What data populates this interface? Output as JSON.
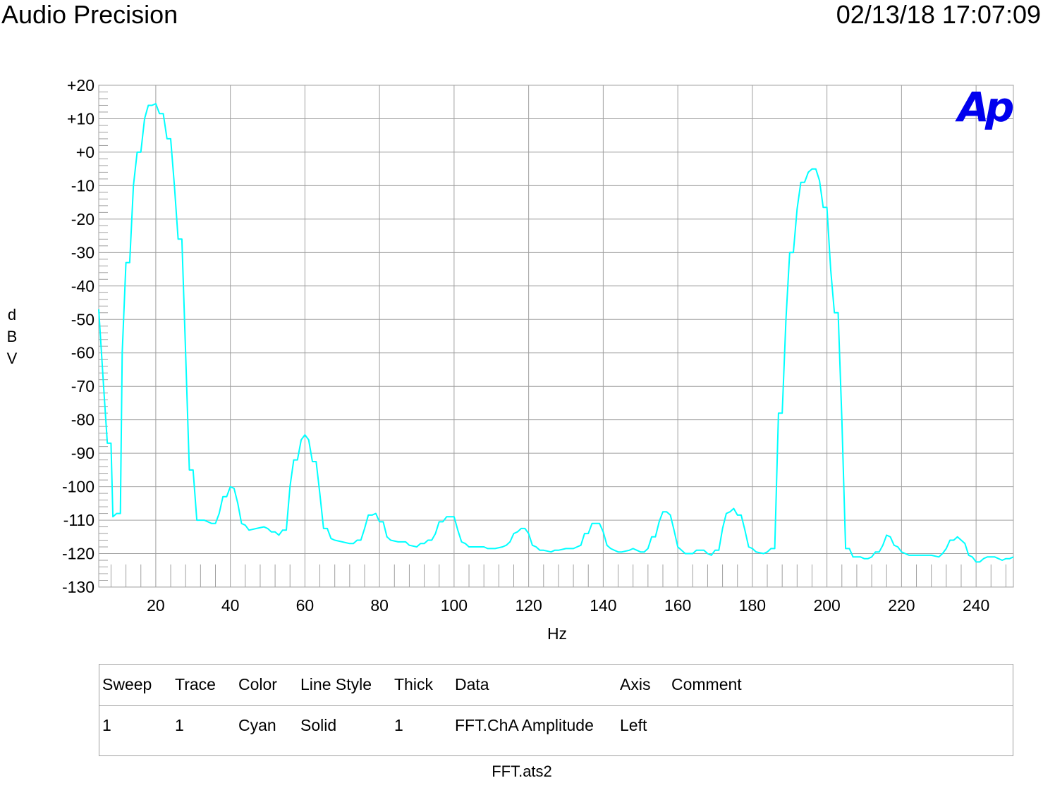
{
  "header": {
    "title": "Audio Precision",
    "timestamp": "02/13/18 17:07:09"
  },
  "logo": {
    "text": "Ap",
    "color": "#0000ee"
  },
  "chart_data": {
    "type": "line",
    "title": "",
    "xlabel": "Hz",
    "ylabel": "dBV",
    "xlim": [
      4.7,
      250
    ],
    "ylim": [
      -130,
      20
    ],
    "x_ticks": [
      20,
      40,
      60,
      80,
      100,
      120,
      140,
      160,
      180,
      200,
      220,
      240
    ],
    "y_ticks": [
      "+20",
      "+10",
      "+0",
      "-10",
      "-20",
      "-30",
      "-40",
      "-50",
      "-60",
      "-70",
      "-80",
      "-90",
      "-100",
      "-110",
      "-120",
      "-130"
    ],
    "grid": true,
    "series": [
      {
        "color": "#00ffff",
        "points": [
          [
            4.7,
            -47
          ],
          [
            6,
            -70
          ],
          [
            7,
            -87
          ],
          [
            8,
            -87
          ],
          [
            8.5,
            -109
          ],
          [
            9.5,
            -108
          ],
          [
            10.5,
            -108
          ],
          [
            11,
            -60
          ],
          [
            12,
            -33
          ],
          [
            13,
            -33
          ],
          [
            14,
            -10
          ],
          [
            15,
            0
          ],
          [
            16,
            0
          ],
          [
            17,
            10
          ],
          [
            18,
            14
          ],
          [
            19,
            14
          ],
          [
            20,
            14.5
          ],
          [
            21,
            11.5
          ],
          [
            22,
            11.5
          ],
          [
            23,
            4
          ],
          [
            24,
            4
          ],
          [
            25,
            -10
          ],
          [
            26,
            -26
          ],
          [
            27,
            -26
          ],
          [
            28,
            -60
          ],
          [
            29,
            -95
          ],
          [
            30,
            -95
          ],
          [
            31,
            -110
          ],
          [
            33,
            -110
          ],
          [
            35,
            -111
          ],
          [
            36,
            -111
          ],
          [
            37,
            -108
          ],
          [
            38,
            -103
          ],
          [
            39,
            -103
          ],
          [
            40,
            -100
          ],
          [
            41,
            -100.5
          ],
          [
            42,
            -105
          ],
          [
            43,
            -111
          ],
          [
            44,
            -111.5
          ],
          [
            45,
            -113
          ],
          [
            47,
            -112.5
          ],
          [
            49,
            -112
          ],
          [
            50,
            -112.5
          ],
          [
            51,
            -113.5
          ],
          [
            52,
            -113.5
          ],
          [
            53,
            -114.5
          ],
          [
            54,
            -113
          ],
          [
            55,
            -113
          ],
          [
            56,
            -100
          ],
          [
            57,
            -92
          ],
          [
            58,
            -92
          ],
          [
            59,
            -86
          ],
          [
            60,
            -84.5
          ],
          [
            61,
            -86
          ],
          [
            62,
            -92.5
          ],
          [
            63,
            -92.5
          ],
          [
            64,
            -102
          ],
          [
            65,
            -112.5
          ],
          [
            66,
            -112.5
          ],
          [
            67,
            -115.5
          ],
          [
            68,
            -116
          ],
          [
            70,
            -116.5
          ],
          [
            72,
            -117
          ],
          [
            73,
            -117
          ],
          [
            74,
            -116
          ],
          [
            75,
            -116
          ],
          [
            76,
            -112.5
          ],
          [
            77,
            -108.5
          ],
          [
            78,
            -108.5
          ],
          [
            79,
            -108
          ],
          [
            80,
            -110.5
          ],
          [
            81,
            -110.5
          ],
          [
            82,
            -115
          ],
          [
            83,
            -116
          ],
          [
            85,
            -116.5
          ],
          [
            87,
            -116.5
          ],
          [
            88,
            -117.5
          ],
          [
            90,
            -118
          ],
          [
            91,
            -117
          ],
          [
            92,
            -117
          ],
          [
            93,
            -116
          ],
          [
            94,
            -116
          ],
          [
            95,
            -114
          ],
          [
            96,
            -110.5
          ],
          [
            97,
            -110.5
          ],
          [
            98,
            -109
          ],
          [
            99,
            -109
          ],
          [
            100,
            -109
          ],
          [
            101,
            -113
          ],
          [
            102,
            -116.5
          ],
          [
            103,
            -117
          ],
          [
            104,
            -118
          ],
          [
            106,
            -118
          ],
          [
            108,
            -118
          ],
          [
            109,
            -118.5
          ],
          [
            111,
            -118.5
          ],
          [
            113,
            -118
          ],
          [
            114,
            -117.5
          ],
          [
            115,
            -116.5
          ],
          [
            116,
            -114
          ],
          [
            117,
            -113.5
          ],
          [
            118,
            -112.5
          ],
          [
            119,
            -112.5
          ],
          [
            120,
            -114
          ],
          [
            121,
            -117.5
          ],
          [
            122,
            -118
          ],
          [
            123,
            -119
          ],
          [
            124,
            -119
          ],
          [
            126,
            -119.5
          ],
          [
            127,
            -119
          ],
          [
            128,
            -119
          ],
          [
            130,
            -118.5
          ],
          [
            132,
            -118.5
          ],
          [
            133,
            -118
          ],
          [
            134,
            -117.5
          ],
          [
            135,
            -114
          ],
          [
            136,
            -114
          ],
          [
            137,
            -111
          ],
          [
            138,
            -111
          ],
          [
            139,
            -111
          ],
          [
            140,
            -113.5
          ],
          [
            141,
            -117.5
          ],
          [
            142,
            -118.5
          ],
          [
            143,
            -119
          ],
          [
            144,
            -119.5
          ],
          [
            145,
            -119.5
          ],
          [
            147,
            -119
          ],
          [
            148,
            -118.5
          ],
          [
            149,
            -119
          ],
          [
            150,
            -119.5
          ],
          [
            151,
            -119.5
          ],
          [
            152,
            -118.5
          ],
          [
            153,
            -115
          ],
          [
            154,
            -115
          ],
          [
            155,
            -110.5
          ],
          [
            156,
            -107.5
          ],
          [
            157,
            -107.5
          ],
          [
            158,
            -108.5
          ],
          [
            159,
            -113
          ],
          [
            160,
            -118
          ],
          [
            161,
            -119
          ],
          [
            162,
            -120
          ],
          [
            164,
            -120
          ],
          [
            165,
            -119
          ],
          [
            166,
            -119
          ],
          [
            167,
            -119
          ],
          [
            168,
            -120
          ],
          [
            169,
            -120.5
          ],
          [
            170,
            -119
          ],
          [
            171,
            -119
          ],
          [
            172,
            -112.5
          ],
          [
            173,
            -108
          ],
          [
            174,
            -107.5
          ],
          [
            175,
            -106.5
          ],
          [
            176,
            -108.5
          ],
          [
            177,
            -108.5
          ],
          [
            178,
            -113
          ],
          [
            179,
            -118
          ],
          [
            180,
            -118.5
          ],
          [
            181,
            -119.5
          ],
          [
            183,
            -120
          ],
          [
            184,
            -119.5
          ],
          [
            185,
            -118.5
          ],
          [
            186,
            -118.5
          ],
          [
            187,
            -78
          ],
          [
            188,
            -78
          ],
          [
            189,
            -50
          ],
          [
            190,
            -30
          ],
          [
            191,
            -30
          ],
          [
            192,
            -17
          ],
          [
            193,
            -9
          ],
          [
            194,
            -9
          ],
          [
            195,
            -6
          ],
          [
            196,
            -5
          ],
          [
            197,
            -5
          ],
          [
            198,
            -8.5
          ],
          [
            199,
            -16.5
          ],
          [
            200,
            -16.5
          ],
          [
            201,
            -35
          ],
          [
            202,
            -48
          ],
          [
            203,
            -48
          ],
          [
            204,
            -80
          ],
          [
            205,
            -118.5
          ],
          [
            206,
            -118.5
          ],
          [
            207,
            -121
          ],
          [
            208,
            -121
          ],
          [
            209,
            -121
          ],
          [
            210,
            -121.5
          ],
          [
            211,
            -121.5
          ],
          [
            212,
            -121
          ],
          [
            213,
            -119.5
          ],
          [
            214,
            -119.5
          ],
          [
            215,
            -117.5
          ],
          [
            216,
            -114.5
          ],
          [
            217,
            -115
          ],
          [
            218,
            -117.5
          ],
          [
            219,
            -118
          ],
          [
            220,
            -119.5
          ],
          [
            221,
            -120
          ],
          [
            222,
            -120.5
          ],
          [
            224,
            -120.5
          ],
          [
            226,
            -120.5
          ],
          [
            228,
            -120.5
          ],
          [
            230,
            -121
          ],
          [
            231,
            -120
          ],
          [
            232,
            -118.5
          ],
          [
            233,
            -116
          ],
          [
            234,
            -116
          ],
          [
            235,
            -115
          ],
          [
            236,
            -116
          ],
          [
            237,
            -117
          ],
          [
            238,
            -120.5
          ],
          [
            239,
            -121
          ],
          [
            240,
            -122.5
          ],
          [
            241,
            -122.5
          ],
          [
            242,
            -121.5
          ],
          [
            243,
            -121
          ],
          [
            244,
            -121
          ],
          [
            245,
            -121
          ],
          [
            246,
            -121.5
          ],
          [
            247,
            -122
          ],
          [
            248,
            -121.5
          ],
          [
            249,
            -121.5
          ],
          [
            250,
            -121
          ]
        ]
      }
    ]
  },
  "legend": {
    "headers": [
      "Sweep",
      "Trace",
      "Color",
      "Line Style",
      "Thick",
      "Data",
      "Axis",
      "Comment"
    ],
    "row": [
      "1",
      "1",
      "Cyan",
      "Solid",
      "1",
      "FFT.ChA Amplitude",
      "Left",
      ""
    ]
  },
  "footer": "FFT.ats2"
}
